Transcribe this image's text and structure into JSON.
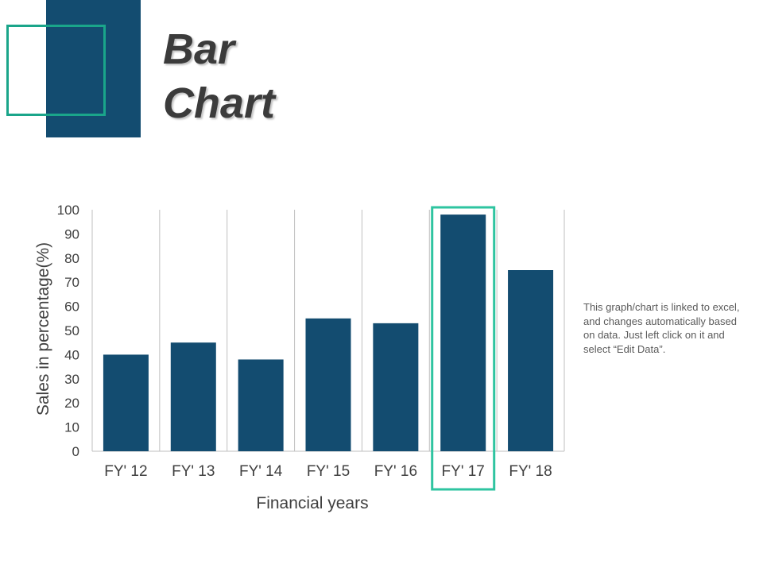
{
  "title": {
    "line1": "Bar",
    "line2": "Chart"
  },
  "note": "This graph/chart is linked to excel, and changes automatically based on data. Just left click on it and select “Edit Data”.",
  "colors": {
    "bar": "#134c70",
    "accent": "#1aa58a",
    "highlight_box": "#2ec4a0",
    "grid": "#bfbfbf",
    "text": "#404040"
  },
  "chart_data": {
    "type": "bar",
    "categories": [
      "FY' 12",
      "FY' 13",
      "FY' 14",
      "FY' 15",
      "FY' 16",
      "FY' 17",
      "FY' 18"
    ],
    "values": [
      40,
      45,
      38,
      55,
      53,
      98,
      75
    ],
    "xlabel": "Financial years",
    "ylabel": "Sales in percentage(%)",
    "ylim": [
      0,
      100
    ],
    "yticks": [
      0,
      10,
      20,
      30,
      40,
      50,
      60,
      70,
      80,
      90,
      100
    ],
    "grid": "vertical separators between categories",
    "highlighted_category": "FY' 17"
  }
}
